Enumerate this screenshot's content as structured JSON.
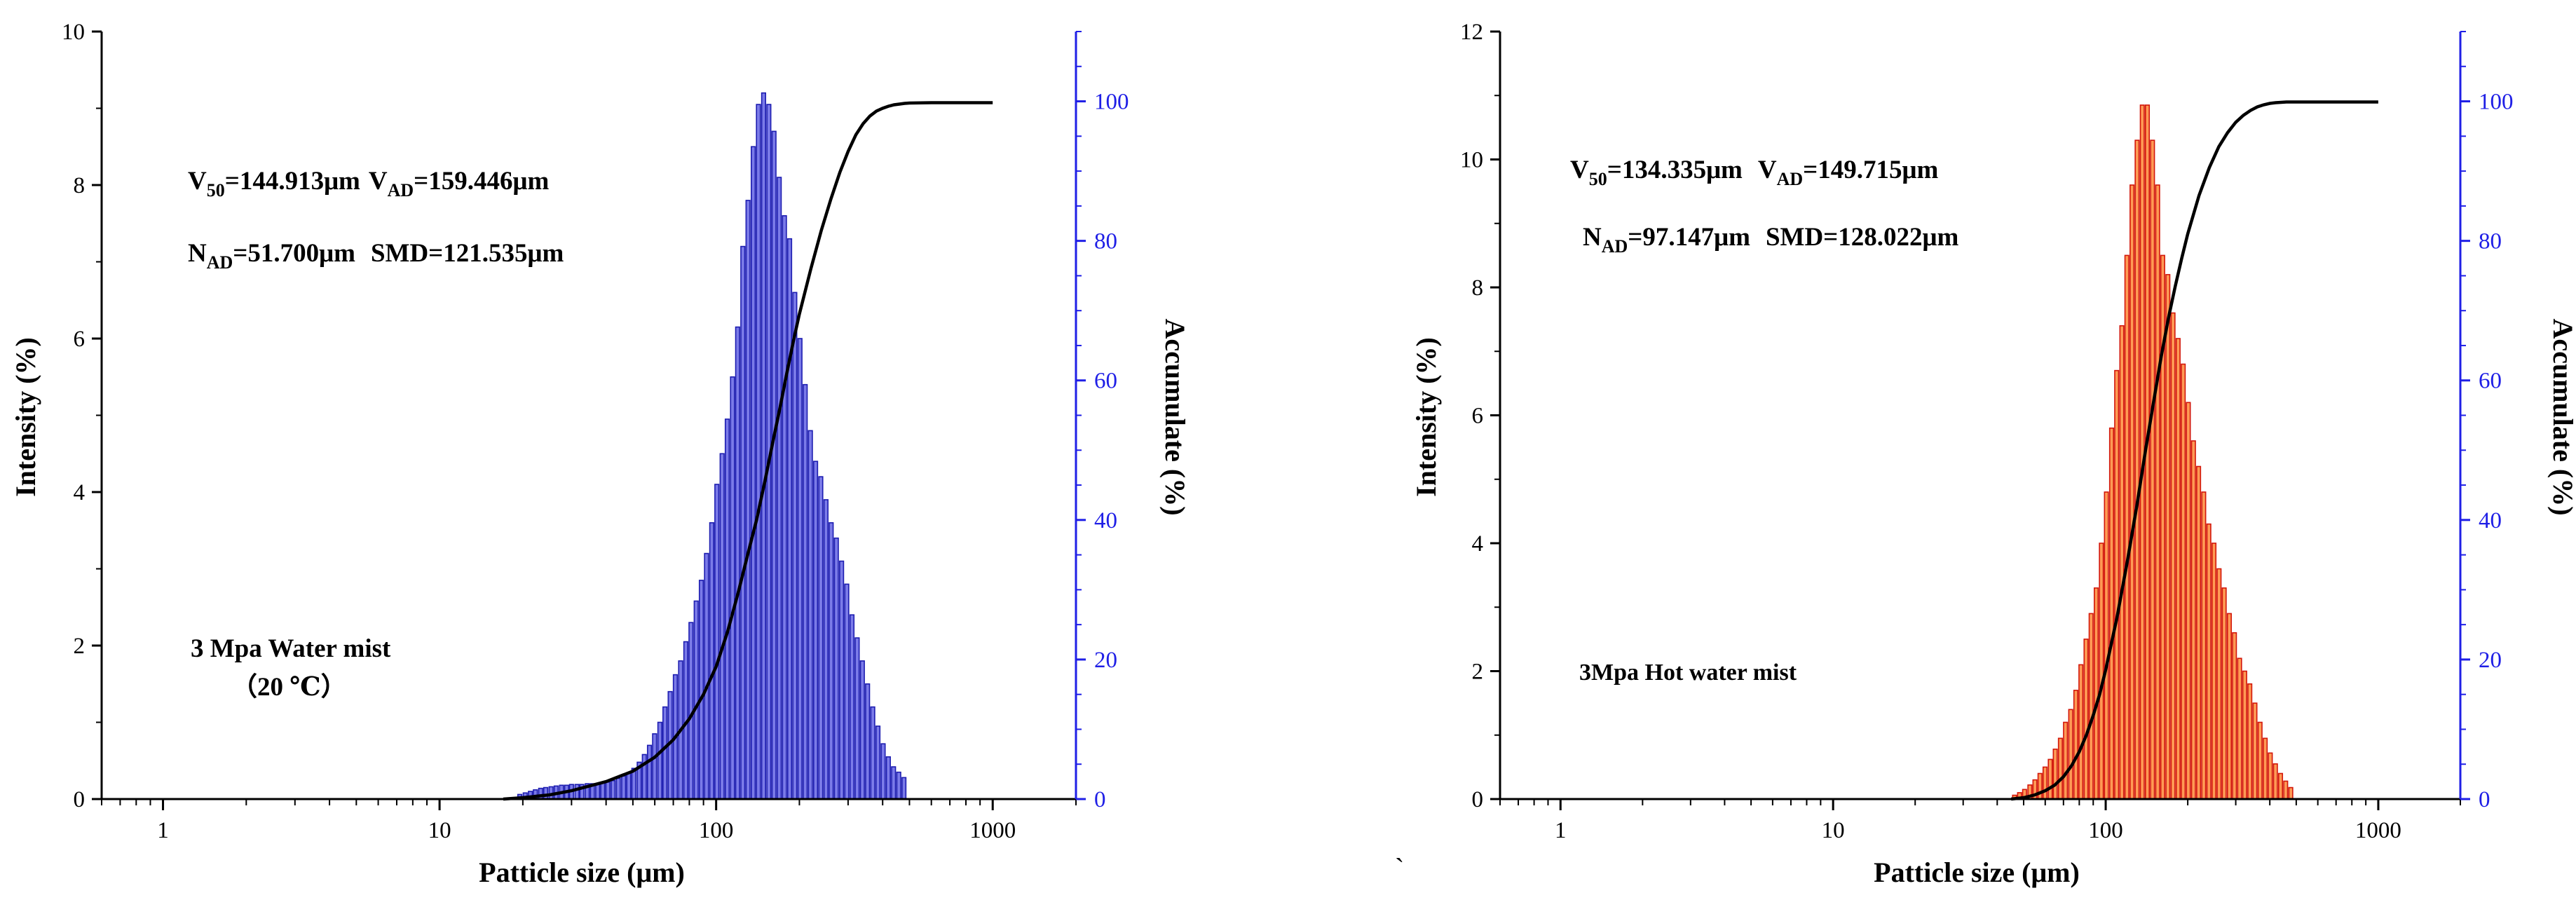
{
  "figure": {
    "stray_mark": "`"
  },
  "chart_data": [
    {
      "type": "bar",
      "subtype": "histogram-with-cumulative-line",
      "xscale": "log",
      "xlabel": "Patticle size (μm)",
      "ylabel": "Intensity (%)",
      "y2label": "Accumulate (%)",
      "xlim": [
        0.6,
        2000
      ],
      "ylim": [
        0,
        10
      ],
      "y2lim": [
        0,
        110
      ],
      "xticks": [
        1,
        10,
        100,
        1000
      ],
      "yticks": [
        0,
        2,
        4,
        6,
        8,
        10
      ],
      "y2ticks": [
        0,
        20,
        40,
        60,
        80,
        100
      ],
      "y2_color": "#1f1fe6",
      "bar_color": "#7b7be8",
      "bar_edge_color": "#1c1cb0",
      "line_color": "#000000",
      "annotations": {
        "line1_left": "V50=144.913μm",
        "line1_right": "VAD=159.446μm",
        "line2_left": "NAD=51.700μm",
        "line2_right": "SMD=121.535μm",
        "v50_base": "V",
        "v50_sub": "50",
        "v50_value": "=144.913μm",
        "vad_base": "V",
        "vad_sub": "AD",
        "vad_value": "=159.446μm",
        "nad_base": "N",
        "nad_sub": "AD",
        "nad_value": "=51.700μm",
        "smd": "SMD=121.535μm",
        "condition_line1": "3 Mpa Water mist",
        "condition_line2": "（20 ℃）"
      },
      "series": [
        {
          "name": "Intensity",
          "x": [
            19.5,
            20.4,
            21.3,
            22.2,
            23.2,
            24.2,
            25.3,
            26.4,
            27.6,
            28.8,
            30.0,
            31.4,
            32.7,
            34.2,
            35.7,
            37.3,
            38.9,
            40.6,
            42.4,
            44.3,
            46.3,
            48.3,
            50.4,
            52.7,
            55.0,
            57.4,
            59.9,
            62.6,
            65.3,
            68.2,
            71.2,
            74.4,
            77.7,
            81.1,
            84.7,
            88.4,
            92.3,
            96.4,
            100.6,
            105.1,
            109.7,
            114.6,
            119.6,
            124.9,
            130.4,
            136.2,
            142.2,
            148.5,
            155.1,
            161.9,
            169.1,
            176.6,
            184.4,
            192.5,
            201.0,
            209.9,
            219.2,
            228.9,
            239.0,
            249.6,
            260.6,
            272.1,
            284.2,
            296.7,
            309.9,
            323.6,
            337.9,
            352.8,
            368.4,
            384.7,
            401.7,
            419.5,
            438.0,
            457.4,
            477.6
          ],
          "values": [
            0.06,
            0.08,
            0.1,
            0.12,
            0.14,
            0.15,
            0.16,
            0.17,
            0.18,
            0.18,
            0.19,
            0.19,
            0.19,
            0.2,
            0.2,
            0.2,
            0.21,
            0.22,
            0.24,
            0.27,
            0.3,
            0.34,
            0.4,
            0.48,
            0.58,
            0.7,
            0.85,
            1.0,
            1.2,
            1.4,
            1.62,
            1.8,
            2.05,
            2.3,
            2.58,
            2.85,
            3.2,
            3.6,
            4.1,
            4.5,
            4.95,
            5.5,
            6.15,
            7.2,
            7.8,
            8.5,
            9.05,
            9.2,
            9.05,
            8.7,
            8.1,
            7.6,
            7.3,
            6.6,
            6.0,
            5.4,
            4.8,
            4.4,
            4.2,
            3.9,
            3.6,
            3.4,
            3.1,
            2.8,
            2.4,
            2.1,
            1.8,
            1.5,
            1.2,
            0.95,
            0.72,
            0.55,
            0.42,
            0.35,
            0.28
          ]
        },
        {
          "name": "Accumulate",
          "axis": "right",
          "x": [
            17,
            20,
            25,
            30,
            40,
            50,
            60,
            70,
            80,
            90,
            100,
            110,
            120,
            130,
            140,
            150,
            160,
            170,
            180,
            190,
            200,
            220,
            240,
            260,
            280,
            300,
            320,
            340,
            360,
            380,
            400,
            420,
            440,
            460,
            480,
            500,
            600,
            800,
            1000
          ],
          "values": [
            0,
            0.2,
            0.6,
            1.2,
            2.5,
            4.0,
            6.0,
            8.5,
            11.5,
            15,
            19,
            24,
            29.5,
            35,
            40,
            45.5,
            51,
            56,
            61,
            65.5,
            69.5,
            76,
            81.5,
            86,
            89.8,
            92.8,
            95.2,
            96.8,
            97.9,
            98.6,
            99.0,
            99.3,
            99.5,
            99.6,
            99.7,
            99.75,
            99.8,
            99.8,
            99.8
          ]
        }
      ]
    },
    {
      "type": "bar",
      "subtype": "histogram-with-cumulative-line",
      "xscale": "log",
      "xlabel": "Patticle size (μm)",
      "ylabel": "Intensity (%)",
      "y2label": "Accumulate (%)",
      "xlim": [
        0.6,
        2000
      ],
      "ylim": [
        0,
        12
      ],
      "y2lim": [
        0,
        110
      ],
      "xticks": [
        1,
        10,
        100,
        1000
      ],
      "yticks": [
        0,
        2,
        4,
        6,
        8,
        10,
        12
      ],
      "y2ticks": [
        0,
        20,
        40,
        60,
        80,
        100
      ],
      "y2_color": "#1f1fe6",
      "bar_color": "#ff9a55",
      "bar_edge_color": "#d2160a",
      "line_color": "#000000",
      "annotations": {
        "line1_left": "V50=134.335μm",
        "line1_right": "VAD=149.715μm",
        "line2_left": "NAD=97.147μm",
        "line2_right": "SMD=128.022μm",
        "v50_base": "V",
        "v50_sub": "50",
        "v50_value": "=134.335μm",
        "vad_base": "V",
        "vad_sub": "AD",
        "vad_value": "=149.715μm",
        "nad_base": "N",
        "nad_sub": "AD",
        "nad_value": "=97.147μm",
        "smd": "SMD=128.022μm",
        "condition_line1": "3Mpa Hot water mist"
      },
      "series": [
        {
          "name": "Intensity",
          "x": [
            46.3,
            48.3,
            50.4,
            52.7,
            55.0,
            57.4,
            59.9,
            62.6,
            65.3,
            68.2,
            71.2,
            74.4,
            77.7,
            81.1,
            84.7,
            88.4,
            92.3,
            96.4,
            100.6,
            105.1,
            109.7,
            114.6,
            119.6,
            124.9,
            130.4,
            136.2,
            142.2,
            148.5,
            155.1,
            161.9,
            169.1,
            176.6,
            184.4,
            192.5,
            201.0,
            209.9,
            219.2,
            228.9,
            239.0,
            249.6,
            260.6,
            272.1,
            284.2,
            296.7,
            309.9,
            323.6,
            337.9,
            352.8,
            368.4,
            384.7,
            401.7,
            419.5,
            438.0,
            457.4,
            477.6
          ],
          "values": [
            0.06,
            0.1,
            0.15,
            0.22,
            0.3,
            0.4,
            0.5,
            0.62,
            0.78,
            0.95,
            1.2,
            1.4,
            1.7,
            2.1,
            2.5,
            2.9,
            3.3,
            4.0,
            4.8,
            5.8,
            6.7,
            7.4,
            8.5,
            9.6,
            10.3,
            10.85,
            10.85,
            10.3,
            9.6,
            8.5,
            8.2,
            7.6,
            7.2,
            6.8,
            6.2,
            5.6,
            5.2,
            4.8,
            4.3,
            4.0,
            3.6,
            3.3,
            2.9,
            2.6,
            2.2,
            2.0,
            1.8,
            1.5,
            1.2,
            0.95,
            0.72,
            0.55,
            0.4,
            0.28,
            0.18
          ]
        },
        {
          "name": "Accumulate",
          "axis": "right",
          "x": [
            45,
            50,
            55,
            60,
            65,
            70,
            75,
            80,
            85,
            90,
            95,
            100,
            110,
            120,
            130,
            140,
            150,
            160,
            170,
            180,
            190,
            200,
            220,
            240,
            260,
            280,
            300,
            320,
            340,
            360,
            380,
            400,
            420,
            440,
            460,
            480,
            500,
            600,
            800,
            1000
          ],
          "values": [
            0,
            0.2,
            0.6,
            1.2,
            2.0,
            3.2,
            4.8,
            6.8,
            9.2,
            12,
            15,
            18.5,
            26,
            34,
            42,
            50,
            57,
            63.5,
            69,
            73.5,
            77.5,
            81,
            86.5,
            90.5,
            93.5,
            95.5,
            97,
            98,
            98.7,
            99.2,
            99.5,
            99.7,
            99.8,
            99.85,
            99.9,
            99.9,
            99.9,
            99.9,
            99.9,
            99.9
          ]
        }
      ]
    }
  ]
}
